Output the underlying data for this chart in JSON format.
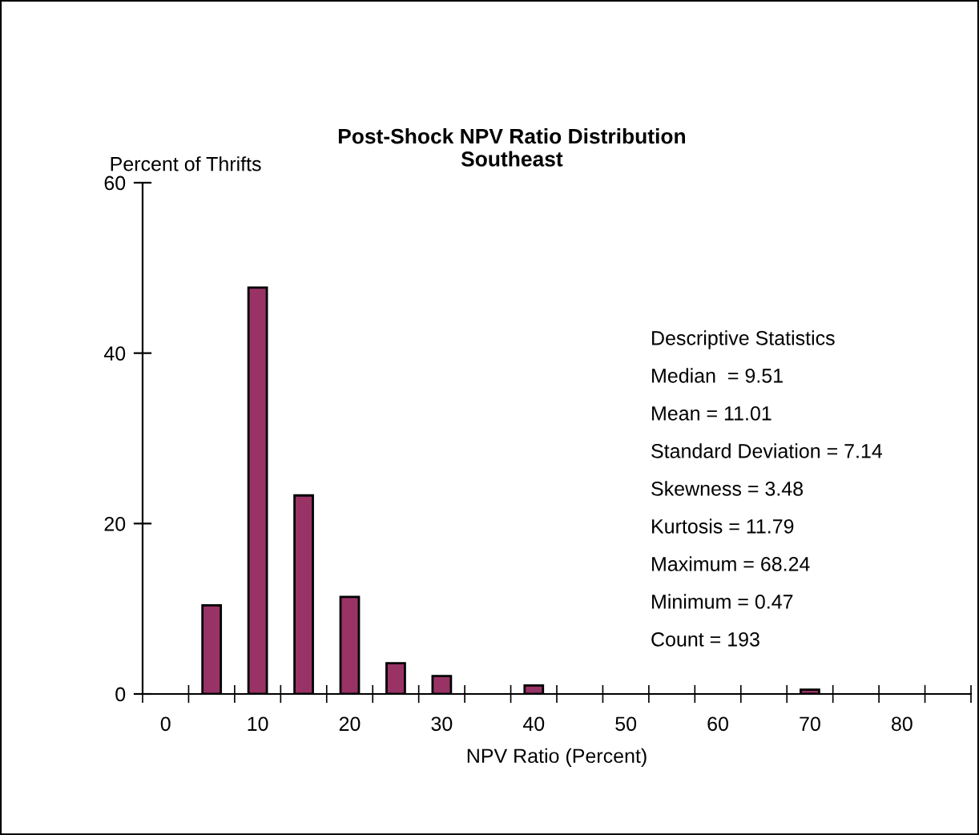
{
  "chart_data": {
    "type": "bar",
    "title": "Post-Shock NPV Ratio Distribution\nSoutheast",
    "xlabel": "NPV Ratio (Percent)",
    "ylabel": "Percent of Thrifts",
    "categories": [
      "0",
      null,
      "10",
      null,
      "20",
      null,
      "30",
      null,
      "40",
      null,
      "50",
      null,
      "60",
      null,
      "70",
      null,
      "80",
      null
    ],
    "values": [
      null,
      10.4,
      47.7,
      23.3,
      11.4,
      3.6,
      2.1,
      null,
      1.0,
      null,
      null,
      null,
      null,
      null,
      0.5,
      null,
      null,
      null
    ],
    "color": "#993366",
    "ylim": [
      0,
      60
    ],
    "yticks": [
      0,
      20,
      40,
      60
    ],
    "grid": false,
    "legend": false,
    "annotations": [
      "Descriptive Statistics",
      "Median  = 9.51",
      "Mean = 11.01",
      "Standard Deviation = 7.14",
      "Skewness = 3.48",
      "Kurtosis = 11.79",
      "Maximum = 68.24",
      "Minimum = 0.47",
      "Count = 193"
    ]
  }
}
